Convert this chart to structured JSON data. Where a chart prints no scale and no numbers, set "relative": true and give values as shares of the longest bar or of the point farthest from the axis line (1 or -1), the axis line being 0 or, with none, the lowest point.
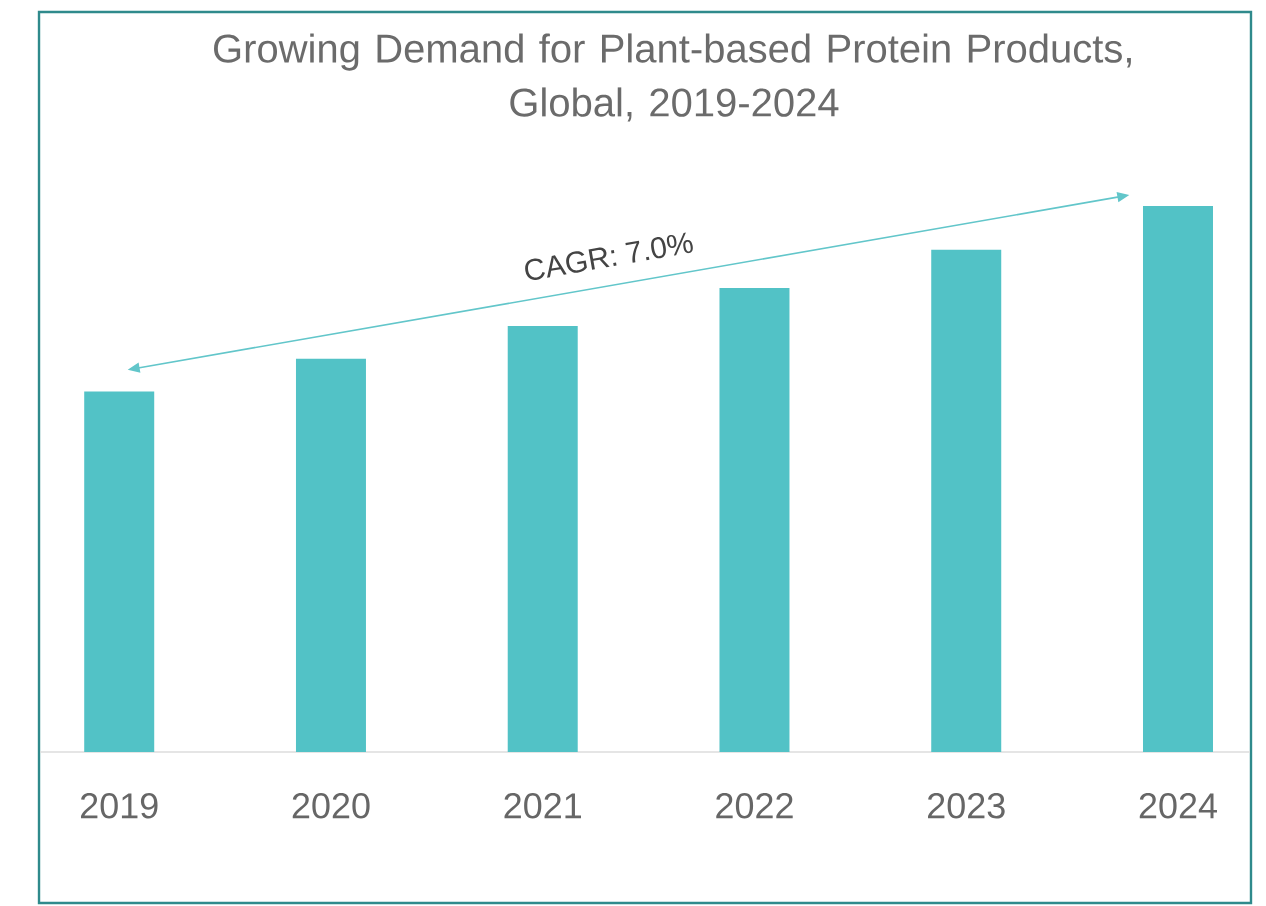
{
  "chart_data": {
    "type": "bar",
    "title": "Growing Demand for Plant-based Protein Products, Global, 2019-2024",
    "categories": [
      "2019",
      "2020",
      "2021",
      "2022",
      "2023",
      "2024"
    ],
    "values": [
      0.66,
      0.72,
      0.78,
      0.85,
      0.92,
      1
    ],
    "color": "#52c2c6",
    "relative": true,
    "annotations": [
      "CAGR: 7.0%"
    ]
  }
}
